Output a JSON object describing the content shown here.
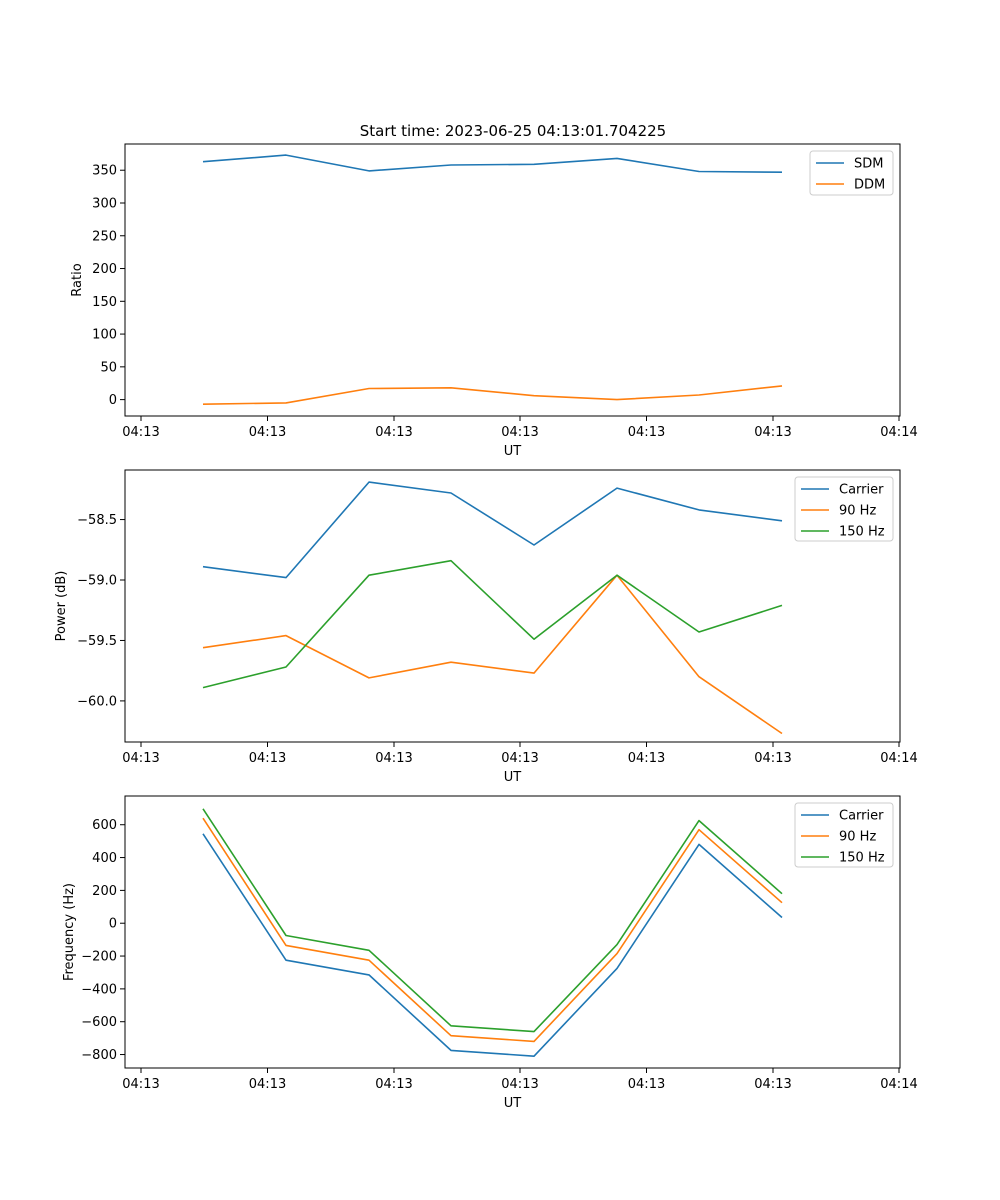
{
  "figure": {
    "title": "Start time: 2023-06-25 04:13:01.704225"
  },
  "chart_data": [
    {
      "type": "line",
      "title": "Start time: 2023-06-25 04:13:01.704225",
      "xlabel": "UT",
      "ylabel": "Ratio",
      "x_tick_labels": [
        "04:13",
        "04:13",
        "04:13",
        "04:13",
        "04:13",
        "04:13",
        "04:14"
      ],
      "y_ticks": [
        0,
        50,
        100,
        150,
        200,
        250,
        300,
        350
      ],
      "ylim": [
        -25,
        390
      ],
      "grid": false,
      "legend": "top-right",
      "series": [
        {
          "name": "SDM",
          "color": "#1f77b4",
          "values": [
            363,
            373,
            349,
            358,
            359,
            368,
            348,
            347
          ]
        },
        {
          "name": "DDM",
          "color": "#ff7f0e",
          "values": [
            -7,
            -5,
            17,
            18,
            6,
            0,
            7,
            21
          ]
        }
      ]
    },
    {
      "type": "line",
      "xlabel": "UT",
      "ylabel": "Power (dB)",
      "x_tick_labels": [
        "04:13",
        "04:13",
        "04:13",
        "04:13",
        "04:13",
        "04:13",
        "04:14"
      ],
      "y_ticks": [
        -60.0,
        -59.5,
        -59.0,
        -58.5
      ],
      "y_tick_labels": [
        "−60.0",
        "−59.5",
        "−59.0",
        "−58.5"
      ],
      "ylim": [
        -60.34,
        -58.09
      ],
      "grid": false,
      "legend": "top-right",
      "series": [
        {
          "name": "Carrier",
          "color": "#1f77b4",
          "values": [
            -58.89,
            -58.98,
            -58.19,
            -58.28,
            -58.71,
            -58.24,
            -58.42,
            -58.51
          ]
        },
        {
          "name": "90 Hz",
          "color": "#ff7f0e",
          "values": [
            -59.56,
            -59.46,
            -59.81,
            -59.68,
            -59.77,
            -58.96,
            -59.8,
            -60.27
          ]
        },
        {
          "name": "150 Hz",
          "color": "#2ca02c",
          "values": [
            -59.89,
            -59.72,
            -58.96,
            -58.84,
            -59.49,
            -58.96,
            -59.43,
            -59.21
          ]
        }
      ]
    },
    {
      "type": "line",
      "xlabel": "UT",
      "ylabel": "Frequency (Hz)",
      "x_tick_labels": [
        "04:13",
        "04:13",
        "04:13",
        "04:13",
        "04:13",
        "04:13",
        "04:14"
      ],
      "y_ticks": [
        -800,
        -600,
        -400,
        -200,
        0,
        200,
        400,
        600
      ],
      "y_tick_labels": [
        "−800",
        "−600",
        "−400",
        "−200",
        "0",
        "200",
        "400",
        "600"
      ],
      "ylim": [
        -882,
        775
      ],
      "grid": false,
      "legend": "top-right",
      "series": [
        {
          "name": "Carrier",
          "color": "#1f77b4",
          "values": [
            545,
            -225,
            -315,
            -775,
            -810,
            -275,
            480,
            35
          ]
        },
        {
          "name": "90 Hz",
          "color": "#ff7f0e",
          "values": [
            640,
            -135,
            -225,
            -685,
            -720,
            -185,
            570,
            125
          ]
        },
        {
          "name": "150 Hz",
          "color": "#2ca02c",
          "values": [
            697,
            -75,
            -165,
            -625,
            -660,
            -130,
            625,
            180
          ]
        }
      ]
    }
  ]
}
